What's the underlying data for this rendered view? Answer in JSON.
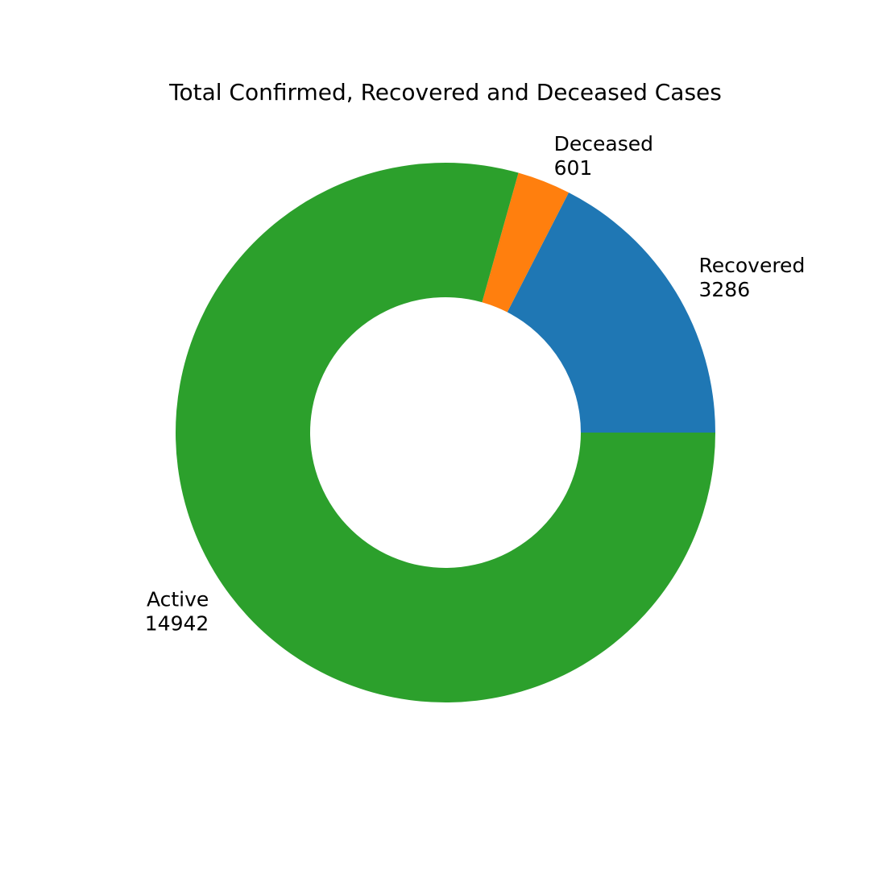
{
  "chart_data": {
    "type": "pie",
    "variant": "donut",
    "title": "Total Confirmed, Recovered and Deceased Cases",
    "slices": [
      {
        "label": "Recovered",
        "value": 3286,
        "color": "#1f77b4"
      },
      {
        "label": "Deceased",
        "value": 601,
        "color": "#ff7f0e"
      },
      {
        "label": "Active",
        "value": 14942,
        "color": "#2ca02c"
      }
    ],
    "start_angle_deg": 0,
    "direction": "counterclockwise"
  }
}
